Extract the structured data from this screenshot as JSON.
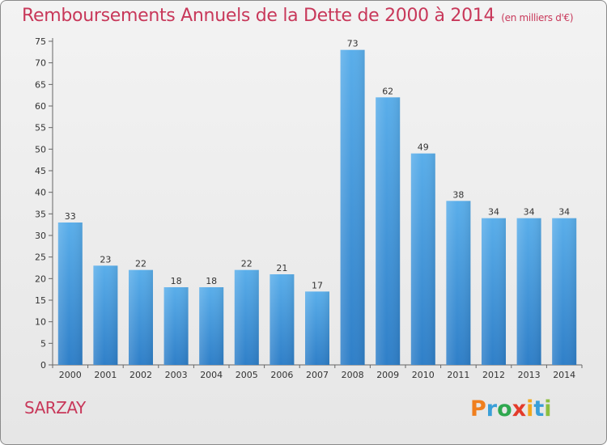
{
  "title": "Remboursements Annuels de la Dette de 2000 à 2014",
  "unit": "(en milliers d'€)",
  "commune": "SARZAY",
  "logo": {
    "text": "Proxiti",
    "colors": [
      "#f07f1e",
      "#3a9fd8",
      "#2fa84f",
      "#e33b2a",
      "#f2a81d",
      "#3a9fd8",
      "#8cbf3f"
    ]
  },
  "chart_data": {
    "type": "bar",
    "categories": [
      "2000",
      "2001",
      "2002",
      "2003",
      "2004",
      "2005",
      "2006",
      "2007",
      "2008",
      "2009",
      "2010",
      "2011",
      "2012",
      "2013",
      "2014"
    ],
    "values": [
      33,
      23,
      22,
      18,
      18,
      22,
      21,
      17,
      73,
      62,
      49,
      38,
      34,
      34,
      34
    ],
    "ylim": [
      0,
      75
    ],
    "yticks": [
      0,
      5,
      10,
      15,
      20,
      25,
      30,
      35,
      40,
      45,
      50,
      55,
      60,
      65,
      70,
      75
    ],
    "grid": false,
    "bar_color_top": "#5aaeea",
    "bar_color_bottom": "#2f7fc8"
  }
}
